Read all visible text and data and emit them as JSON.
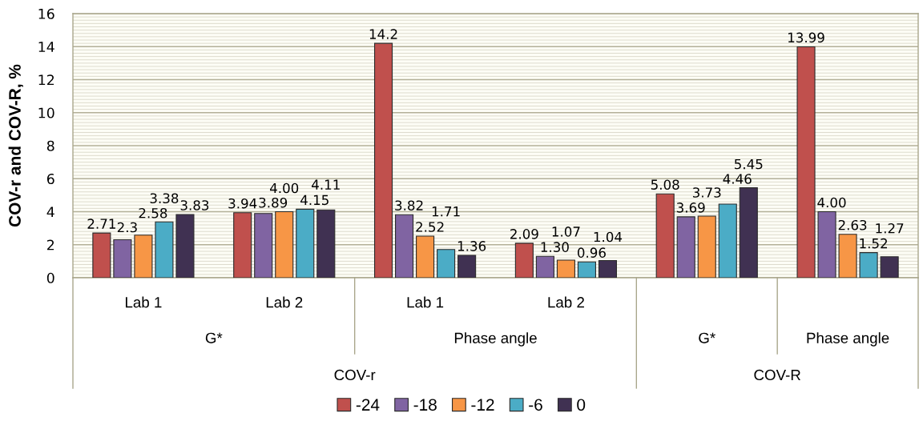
{
  "chart_data": {
    "type": "bar",
    "ylabel": "COV-r and COV-R, %",
    "categories": [
      "Lab 1",
      "Lab 2",
      "Lab 1",
      "Lab 2",
      null,
      null
    ],
    "annotations": [
      "G*",
      "Phase angle",
      "G*",
      "Phase angle",
      "COV-r",
      "COV-R"
    ],
    "series": [
      {
        "name": "-24",
        "color": "#c0504d",
        "values": [
          2.71,
          3.94,
          14.2,
          2.09,
          5.08,
          13.99
        ],
        "value_labels": [
          "2.71",
          "3.94",
          "14.2",
          "2.09",
          "5.08",
          "13.99"
        ]
      },
      {
        "name": "-18",
        "color": "#8064a2",
        "values": [
          2.3,
          3.89,
          3.82,
          1.3,
          3.69,
          4.0
        ],
        "value_labels": [
          "2.3",
          "3.89",
          "3.82",
          "1.30",
          "3.69",
          "4.00"
        ]
      },
      {
        "name": "-12",
        "color": "#f79646",
        "values": [
          2.58,
          4.0,
          2.52,
          1.07,
          3.73,
          2.63
        ],
        "value_labels": [
          "2.58",
          "4.00",
          "2.52",
          "1.07",
          "3.73",
          "2.63"
        ]
      },
      {
        "name": "-6",
        "color": "#4bacc6",
        "values": [
          3.38,
          4.15,
          1.71,
          0.96,
          4.46,
          1.52
        ],
        "value_labels": [
          "3.38",
          "4.15",
          "1.71",
          "0.96",
          "4.46",
          "1.52"
        ]
      },
      {
        "name": "0",
        "color": "#403152",
        "values": [
          3.83,
          4.11,
          1.36,
          1.04,
          5.45,
          1.27
        ],
        "value_labels": [
          "3.83",
          "4.11",
          "1.36",
          "1.04",
          "5.45",
          "1.27"
        ]
      }
    ],
    "ylim": [
      0,
      16
    ],
    "yticks": [
      0,
      {
        "value": 0.2,
        "label": null
      },
      {
        "value": 0.4,
        "label": null
      },
      {
        "value": 0.6,
        "label": null
      },
      {
        "value": 0.8,
        "label": null
      },
      {
        "value": 1,
        "label": null
      },
      {
        "value": 1.2,
        "label": null
      },
      {
        "value": 1.4,
        "label": null
      },
      {
        "value": 1.6,
        "label": null
      },
      {
        "value": 1.8,
        "label": null
      },
      2,
      {
        "value": 2.2,
        "label": null
      },
      {
        "value": 2.4,
        "label": null
      },
      {
        "value": 2.6,
        "label": null
      },
      {
        "value": 2.8,
        "label": null
      },
      {
        "value": 3,
        "label": null
      },
      {
        "value": 3.2,
        "label": null
      },
      {
        "value": 3.4,
        "label": null
      },
      {
        "value": 3.6,
        "label": null
      },
      {
        "value": 3.8,
        "label": null
      },
      4,
      {
        "value": 4.2,
        "label": null
      },
      {
        "value": 4.4,
        "label": null
      },
      {
        "value": 4.6,
        "label": null
      },
      {
        "value": 4.8,
        "label": null
      },
      {
        "value": 5,
        "label": null
      },
      {
        "value": 5.2,
        "label": null
      },
      {
        "value": 5.4,
        "label": null
      },
      {
        "value": 5.6,
        "label": null
      },
      {
        "value": 5.8,
        "label": null
      },
      6,
      {
        "value": 6.2,
        "label": null
      },
      {
        "value": 6.4,
        "label": null
      },
      {
        "value": 6.6,
        "label": null
      },
      {
        "value": 6.8,
        "label": null
      },
      {
        "value": 7,
        "label": null
      },
      {
        "value": 7.2,
        "label": null
      },
      {
        "value": 7.4,
        "label": null
      },
      {
        "value": 7.6,
        "label": null
      },
      {
        "value": 7.8,
        "label": null
      },
      8,
      {
        "value": 8.2,
        "label": null
      },
      {
        "value": 8.4,
        "label": null
      },
      {
        "value": 8.6,
        "label": null
      },
      {
        "value": 8.8,
        "label": null
      },
      {
        "value": 9,
        "label": null
      },
      {
        "value": 9.2,
        "label": null
      },
      {
        "value": 9.4,
        "label": null
      },
      {
        "value": 9.6,
        "label": null
      },
      {
        "value": 9.8,
        "label": null
      },
      10,
      {
        "value": 10.2,
        "label": null
      },
      {
        "value": 10.4,
        "label": null
      },
      {
        "value": 10.6,
        "label": null
      },
      {
        "value": 10.8,
        "label": null
      },
      {
        "value": 11,
        "label": null
      },
      {
        "value": 11.2,
        "label": null
      },
      {
        "value": 11.4,
        "label": null
      },
      {
        "value": 11.6,
        "label": null
      },
      {
        "value": 11.8,
        "label": null
      },
      12,
      {
        "value": 12.2,
        "label": null
      },
      {
        "value": 12.4,
        "label": null
      },
      {
        "value": 12.6,
        "label": null
      },
      {
        "value": 12.8,
        "label": null
      },
      {
        "value": 13,
        "label": null
      },
      {
        "value": 13.2,
        "label": null
      },
      {
        "value": 13.4,
        "label": null
      },
      {
        "value": 13.6,
        "label": null
      },
      {
        "value": 13.8,
        "label": null
      },
      14,
      {
        "value": 14.2,
        "label": null
      },
      {
        "value": 14.4,
        "label": null
      },
      {
        "value": 14.6,
        "label": null
      },
      {
        "value": 14.8,
        "label": null
      },
      {
        "value": 15,
        "label": null
      },
      {
        "value": 15.2,
        "label": null
      },
      {
        "value": 15.4,
        "label": null
      },
      {
        "value": 15.6,
        "label": null
      },
      {
        "value": 15.8,
        "label": null
      },
      16
    ],
    "grid": "y",
    "legend": "bottom"
  }
}
